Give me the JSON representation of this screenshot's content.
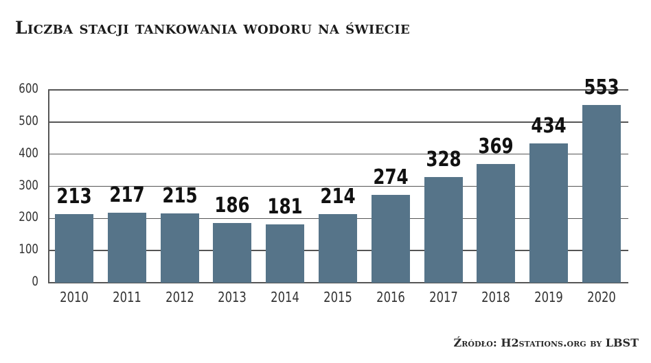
{
  "title": "Liczba stacji tankowania wodoru na świecie",
  "source": "Źródło: H2stations.org by LBST",
  "colors": {
    "bar": "#567489",
    "grid": "#555555",
    "text": "#111111"
  },
  "chart_data": {
    "type": "bar",
    "title": "Liczba stacji tankowania wodoru na świecie",
    "xlabel": "",
    "ylabel": "",
    "categories": [
      "2010",
      "2011",
      "2012",
      "2013",
      "2014",
      "2015",
      "2016",
      "2017",
      "2018",
      "2019",
      "2020"
    ],
    "values": [
      213,
      217,
      215,
      186,
      181,
      214,
      274,
      328,
      369,
      434,
      553
    ],
    "ylim": [
      0,
      600
    ],
    "yticks": [
      0,
      100,
      200,
      300,
      400,
      500,
      600
    ],
    "grid": true,
    "legend": null,
    "data_labels": true,
    "annotation": "Źródło: H2stations.org by LBST"
  }
}
